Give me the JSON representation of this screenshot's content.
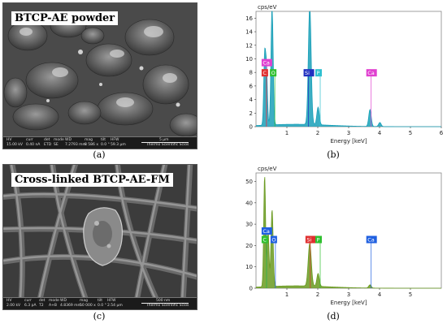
{
  "panels": {
    "a": {
      "caption": "(a)",
      "title": "BTCP-AE powder",
      "footer": {
        "hv_label": "HV",
        "hv": "15.00 kV",
        "curr_label": "curr",
        "curr": "0.40 nA",
        "det_label": "det",
        "det": "ETD",
        "mode_label": "mode",
        "mode": "SE",
        "wd_label": "WD",
        "wd": "7.2793 mm",
        "mag_label": "mag",
        "mag": "8 586 x",
        "tilt_label": "tilt",
        "tilt": "0.0 °",
        "hfw_label": "HFW",
        "hfw": "59.3 µm",
        "scale": "5 µm",
        "brand": "Thermo Scientific Scios"
      }
    },
    "b": {
      "caption": "(b)",
      "ylabel": "cps/eV",
      "xlabel": "Energy [keV]",
      "chart_data": {
        "type": "line",
        "xlabel": "Energy [keV]",
        "ylabel": "cps/eV",
        "xlim": [
          0,
          6
        ],
        "ylim": [
          0,
          17
        ],
        "xticks": [
          1,
          2,
          3,
          4,
          5,
          6
        ],
        "yticks": [
          0,
          2,
          4,
          6,
          8,
          10,
          12,
          14,
          16
        ],
        "series_color": "#1aa0b8",
        "peaks": [
          {
            "x": 0.28,
            "y": 10.0,
            "w": 0.03
          },
          {
            "x": 0.34,
            "y": 8.0,
            "w": 0.03
          },
          {
            "x": 0.52,
            "y": 17.5,
            "w": 0.035
          },
          {
            "x": 1.74,
            "y": 17.5,
            "w": 0.045
          },
          {
            "x": 2.01,
            "y": 2.6,
            "w": 0.04
          },
          {
            "x": 3.69,
            "y": 2.5,
            "w": 0.04
          },
          {
            "x": 4.01,
            "y": 0.6,
            "w": 0.04
          }
        ],
        "labels": [
          {
            "text": "Ca",
            "x": 0.26,
            "y": 9.5,
            "color": "#e040d0"
          },
          {
            "text": "C",
            "x": 0.26,
            "y": 8.0,
            "color": "#e03030"
          },
          {
            "text": "O",
            "x": 0.53,
            "y": 8.0,
            "color": "#30c030"
          },
          {
            "text": "Si",
            "x": 1.62,
            "y": 8.0,
            "color": "#2030c0"
          },
          {
            "text": "P",
            "x": 2.0,
            "y": 8.0,
            "color": "#30c0d0"
          },
          {
            "text": "Ca",
            "x": 3.65,
            "y": 8.0,
            "color": "#e040d0"
          }
        ]
      }
    },
    "c": {
      "caption": "(c)",
      "title": "Cross-linked BTCP-AE-FM",
      "footer": {
        "hv_label": "HV",
        "hv": "2.00 kV",
        "curr_label": "curr",
        "curr": "6.3 pA",
        "det_label": "det",
        "det": "T2",
        "mode_label": "mode",
        "mode": "A+B",
        "wd_label": "WD",
        "wd": "4.8369 mm",
        "mag_label": "mag",
        "mag": "50 000 x",
        "tilt_label": "tilt",
        "tilt": "0.0 °",
        "hfw_label": "HFW",
        "hfw": "2.54 µm",
        "scale": "500 nm",
        "brand": "Thermo Scientific Scios"
      }
    },
    "d": {
      "caption": "(d)",
      "ylabel": "cps/eV",
      "xlabel": "Energy [keV]",
      "chart_data": {
        "type": "line",
        "xlabel": "Energy [keV]",
        "ylabel": "cps/eV",
        "xlim": [
          0,
          6
        ],
        "ylim": [
          0,
          54
        ],
        "xticks": [
          1,
          2,
          3,
          4,
          5
        ],
        "yticks": [
          0,
          10,
          20,
          30,
          40,
          50
        ],
        "series_color": "#6a9a20",
        "peaks": [
          {
            "x": 0.28,
            "y": 52.0,
            "w": 0.03
          },
          {
            "x": 0.39,
            "y": 27.0,
            "w": 0.03
          },
          {
            "x": 0.52,
            "y": 36.0,
            "w": 0.035
          },
          {
            "x": 1.74,
            "y": 20.0,
            "w": 0.05
          },
          {
            "x": 2.01,
            "y": 6.0,
            "w": 0.04
          },
          {
            "x": 3.69,
            "y": 1.5,
            "w": 0.04
          }
        ],
        "labels": [
          {
            "text": "Ca",
            "x": 0.26,
            "y": 27.0,
            "color": "#2060e0"
          },
          {
            "text": "C",
            "x": 0.26,
            "y": 23.0,
            "color": "#30c030"
          },
          {
            "text": "O",
            "x": 0.55,
            "y": 23.0,
            "color": "#2060e0"
          },
          {
            "text": "Si",
            "x": 1.68,
            "y": 23.0,
            "color": "#e03030"
          },
          {
            "text": "P",
            "x": 2.0,
            "y": 23.0,
            "color": "#30c030"
          },
          {
            "text": "Ca",
            "x": 3.65,
            "y": 23.0,
            "color": "#2060e0"
          }
        ]
      }
    }
  }
}
